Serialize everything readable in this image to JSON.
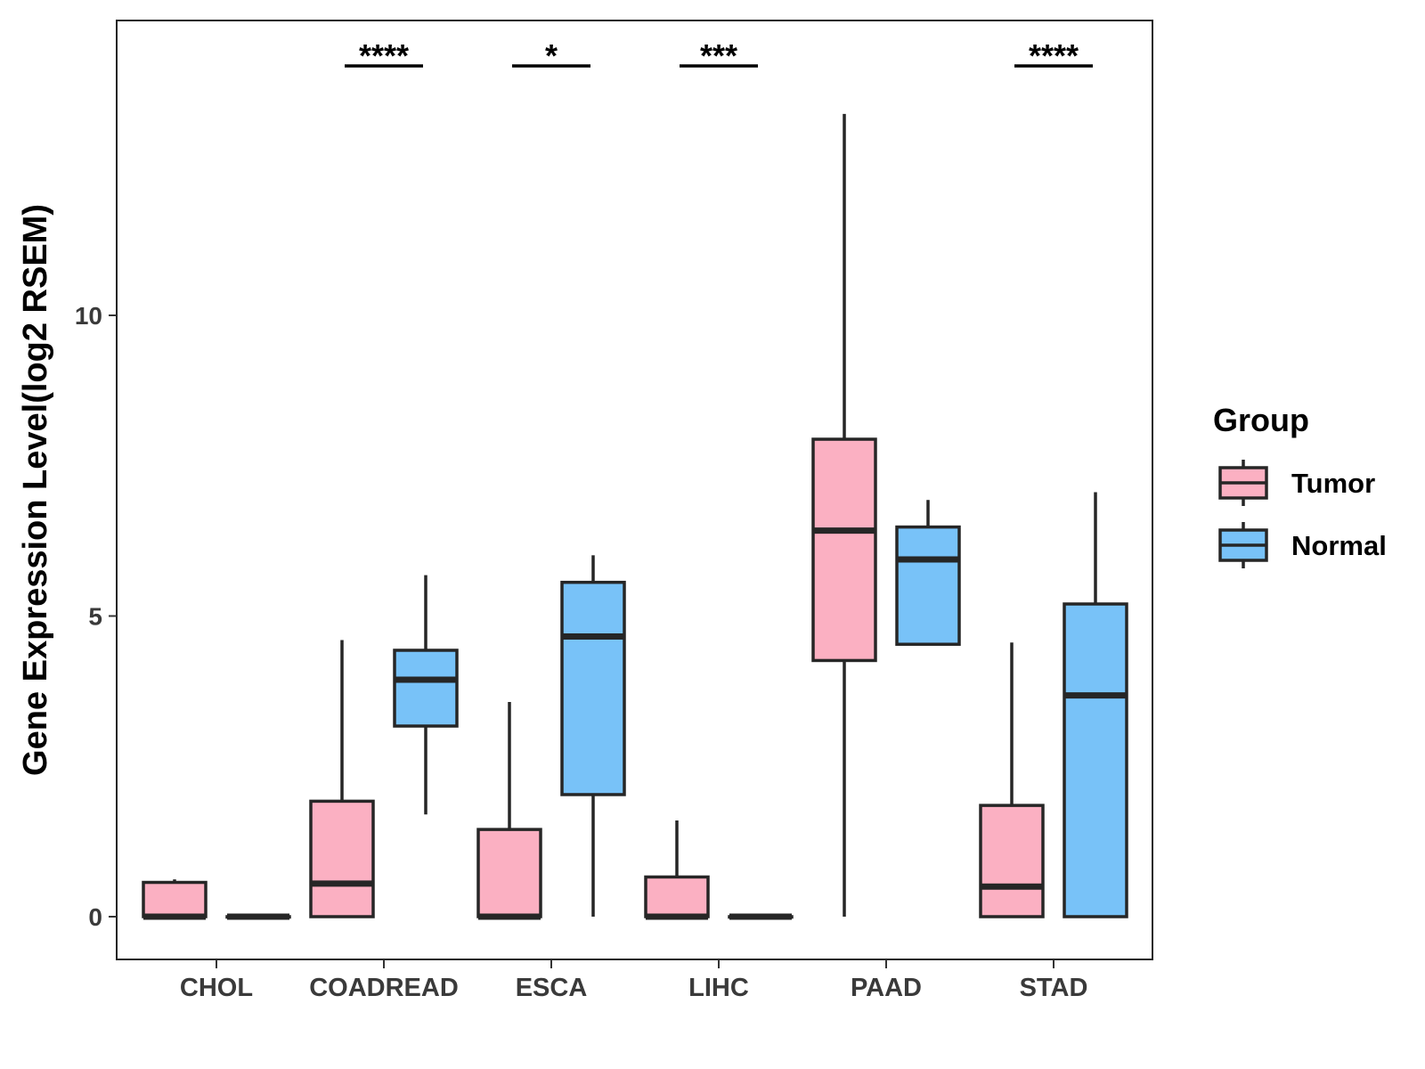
{
  "chart_data": {
    "type": "boxplot",
    "title": "",
    "xlabel": "",
    "ylabel": "Gene Expression Level(log2 RSEM)",
    "ylim": [
      -0.7,
      14.9
    ],
    "yticks": [
      0,
      5,
      10
    ],
    "grid": false,
    "categories": [
      "CHOL",
      "COADREAD",
      "ESCA",
      "LIHC",
      "PAAD",
      "STAD"
    ],
    "legend": {
      "title": "Group",
      "position": "right",
      "entries": [
        {
          "name": "Tumor",
          "color": "#FBB0C2"
        },
        {
          "name": "Normal",
          "color": "#78C2F8"
        }
      ]
    },
    "series": [
      {
        "name": "Tumor",
        "color": "#FBB0C2",
        "boxes": [
          {
            "min": 0.0,
            "q1": 0.0,
            "median": 0.0,
            "q3": 0.57,
            "max": 0.62
          },
          {
            "min": 0.0,
            "q1": 0.0,
            "median": 0.55,
            "q3": 1.92,
            "max": 4.6
          },
          {
            "min": 0.0,
            "q1": 0.0,
            "median": 0.0,
            "q3": 1.45,
            "max": 3.57
          },
          {
            "min": 0.0,
            "q1": 0.0,
            "median": 0.0,
            "q3": 0.66,
            "max": 1.6
          },
          {
            "min": 0.0,
            "q1": 4.26,
            "median": 6.42,
            "q3": 7.94,
            "max": 13.35
          },
          {
            "min": 0.0,
            "q1": 0.0,
            "median": 0.5,
            "q3": 1.85,
            "max": 4.56
          }
        ]
      },
      {
        "name": "Normal",
        "color": "#78C2F8",
        "boxes": [
          {
            "min": 0.0,
            "q1": 0.0,
            "median": 0.0,
            "q3": 0.0,
            "max": 0.0
          },
          {
            "min": 1.7,
            "q1": 3.17,
            "median": 3.94,
            "q3": 4.43,
            "max": 5.68
          },
          {
            "min": 0.0,
            "q1": 2.03,
            "median": 4.66,
            "q3": 5.56,
            "max": 6.01
          },
          {
            "min": 0.0,
            "q1": 0.0,
            "median": 0.0,
            "q3": 0.0,
            "max": 0.0
          },
          {
            "min": 4.53,
            "q1": 4.53,
            "median": 5.94,
            "q3": 6.48,
            "max": 6.93
          },
          {
            "min": 0.0,
            "q1": 0.0,
            "median": 3.68,
            "q3": 5.2,
            "max": 7.06
          }
        ]
      }
    ],
    "annotations": [
      {
        "category": "COADREAD",
        "text": "****"
      },
      {
        "category": "ESCA",
        "text": "*"
      },
      {
        "category": "LIHC",
        "text": "***"
      },
      {
        "category": "STAD",
        "text": "****"
      }
    ]
  }
}
